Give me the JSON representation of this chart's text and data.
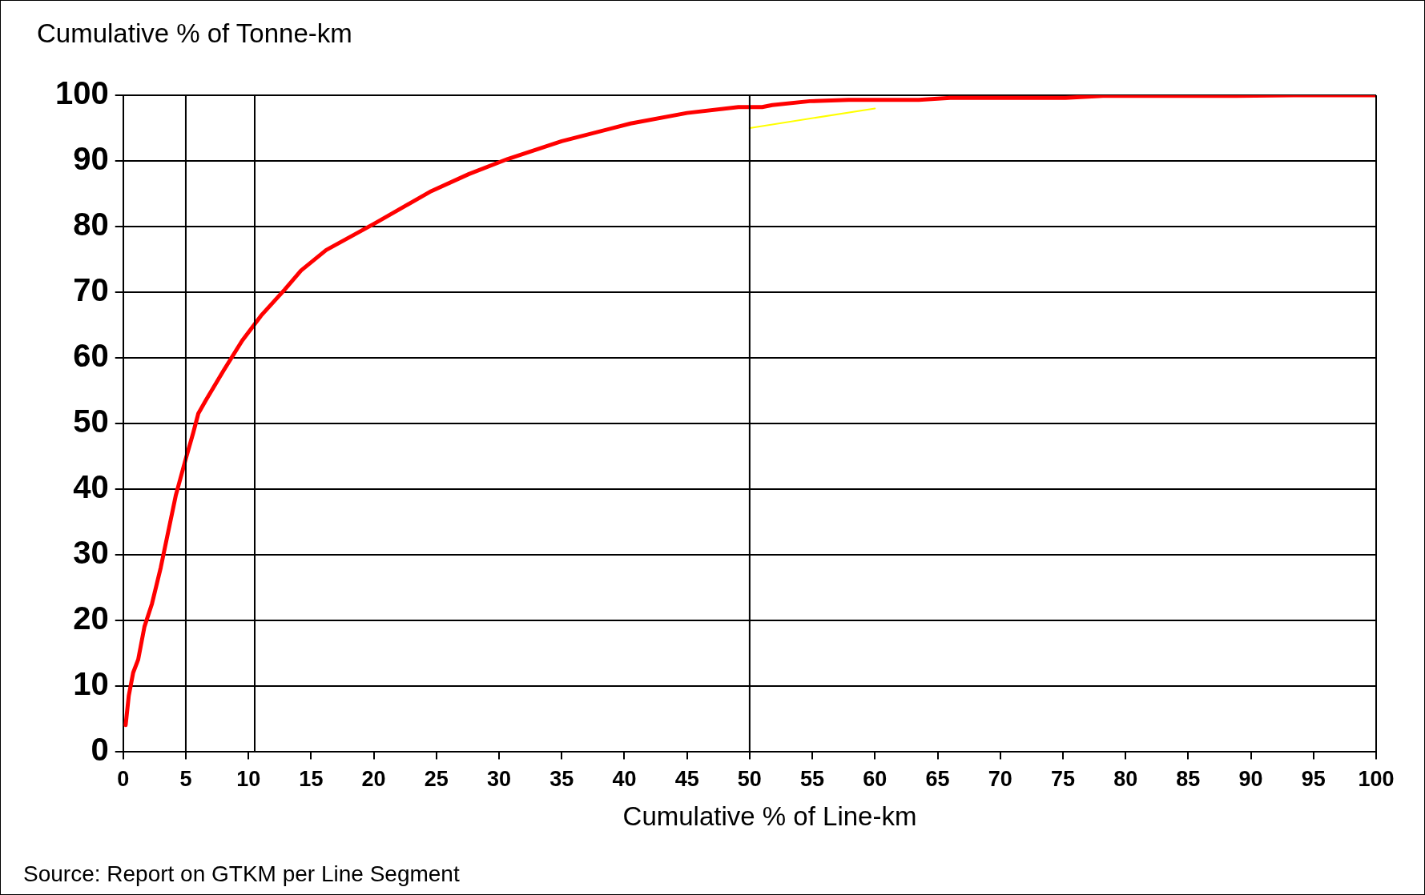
{
  "chart_data": {
    "type": "line",
    "ylabel": "Cumulative % of Tonne-km",
    "xlabel": "Cumulative % of Line-km",
    "annotations": [
      "Source: Report on GTKM per Line Segment"
    ],
    "x": [
      0.2,
      0.45,
      0.8,
      1.2,
      1.7,
      2.3,
      3,
      4.2,
      5,
      5.6,
      6,
      6.6,
      8,
      9.5,
      11,
      12.9,
      14.2,
      16.2,
      20.1,
      24.6,
      27.6,
      30.7,
      35,
      40.5,
      45,
      49.1,
      51,
      51.8,
      54.8,
      57.9,
      63.5,
      66,
      75.2,
      78.2,
      88.8,
      93.4,
      100
    ],
    "series": [
      {
        "color": "#ff0000",
        "values": [
          4,
          8.5,
          12,
          14,
          19,
          22.5,
          28,
          39,
          44.6,
          48.6,
          51.5,
          53.5,
          58,
          62.6,
          66.4,
          70.4,
          73.3,
          76.4,
          80.5,
          85.4,
          88,
          90.3,
          93,
          95.7,
          97.3,
          98.2,
          98.2,
          98.5,
          99.1,
          99.3,
          99.3,
          99.6,
          99.6,
          99.9,
          99.9,
          100,
          100
        ]
      },
      {
        "color": "#ffff00",
        "x": [
          50,
          60
        ],
        "values": [
          95,
          98
        ]
      }
    ],
    "xlim": [
      0,
      100
    ],
    "xticks": [
      0,
      5,
      10,
      15,
      20,
      25,
      30,
      35,
      40,
      45,
      50,
      55,
      60,
      65,
      70,
      75,
      80,
      85,
      90,
      95,
      100
    ],
    "ylim": [
      0,
      100
    ],
    "yticks": [
      0,
      10,
      20,
      30,
      40,
      50,
      60,
      70,
      80,
      90,
      100
    ],
    "grid": "y",
    "legend": false,
    "marker": "none",
    "line_style": "solid",
    "ref_lines": [
      {
        "axis": "x",
        "value": 5
      },
      {
        "axis": "x",
        "value": 10.5
      },
      {
        "axis": "x",
        "value": 50
      }
    ]
  }
}
